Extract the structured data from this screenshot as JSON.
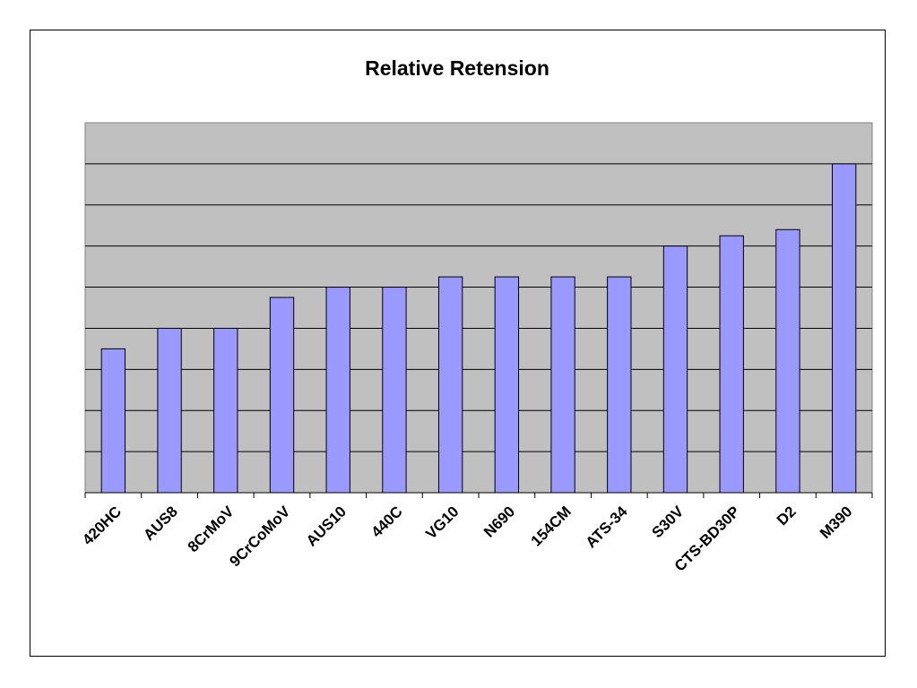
{
  "chart_data": {
    "type": "bar",
    "title": "Relative Retension",
    "xlabel": "",
    "ylabel": "",
    "categories": [
      "420HC",
      "AUS8",
      "8CrMoV",
      "9CrCoMoV",
      "AUS10",
      "440C",
      "VG10",
      "N690",
      "154CM",
      "ATS-34",
      "S30V",
      "CTS-BD30P",
      "D2",
      "M390"
    ],
    "values": [
      3.5,
      4.0,
      4.0,
      4.75,
      5.0,
      5.0,
      5.25,
      5.25,
      5.25,
      5.25,
      6.0,
      6.25,
      6.4,
      8.0
    ],
    "ylim": [
      0,
      9
    ],
    "y_ticks_labeled": false,
    "grid": true,
    "legend": "none",
    "colors": {
      "bar_fill": "#9999ff",
      "bar_stroke": "#000000",
      "plot_background": "#c0c0c0",
      "gridline": "#000000"
    }
  }
}
